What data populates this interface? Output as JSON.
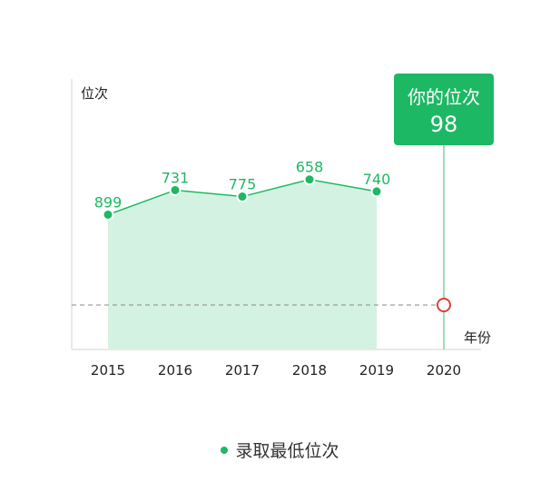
{
  "chart_data": {
    "type": "area",
    "ylabel": "位次",
    "xlabel": "年份",
    "categories": [
      "2015",
      "2016",
      "2017",
      "2018",
      "2019",
      "2020"
    ],
    "series": [
      {
        "name": "录取最低位次",
        "x": [
          "2015",
          "2016",
          "2017",
          "2018",
          "2019"
        ],
        "values": [
          899,
          731,
          775,
          658,
          740
        ]
      }
    ],
    "y_inverted": true,
    "ylim": [
      1800,
      0
    ],
    "reference": {
      "x": "2020",
      "value": 98,
      "label": "你的位次",
      "marker": "hollow-circle"
    },
    "grid": false,
    "legend_position": "bottom-center",
    "colors": {
      "line": "#1db864",
      "area": "#d4f2e1",
      "tooltip_bg": "#1db864",
      "marker": "#d9403a",
      "dashed": "#888888",
      "axis": "#e4e4e4"
    }
  }
}
